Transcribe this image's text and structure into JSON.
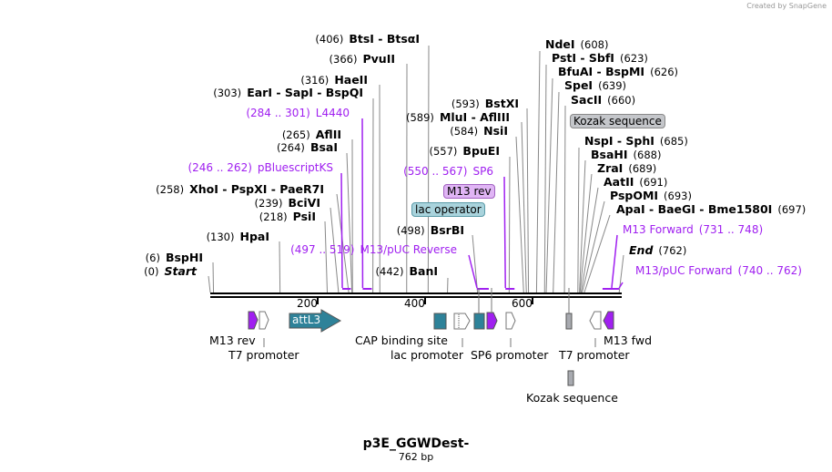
{
  "credit": "Created by SnapGene",
  "title": "p3E_GGWDest-",
  "length": "762 bp",
  "colors": {
    "primer": "#a020f0",
    "teal": "#2e8299",
    "kozak": "#a8aab0",
    "lacop": "#a9d3dc",
    "m13rev_box": "#e0b5f5"
  },
  "sites": [
    {
      "num": "(406)",
      "name": "BtsI  -  BtsαI",
      "bp": 406
    },
    {
      "num": "(366)",
      "name": "PvuII",
      "bp": 366
    },
    {
      "num": "(316)",
      "name": "HaeII",
      "bp": 316
    },
    {
      "num": "(303)",
      "name": "EarI  -  SapI  -  BspQI",
      "bp": 303
    },
    {
      "num": "(265)",
      "name": "AflII",
      "bp": 265
    },
    {
      "num": "(264)",
      "name": "BsaI",
      "bp": 264
    },
    {
      "num": "(258)",
      "name": "XhoI  -  PspXI  -  PaeR7I",
      "bp": 258
    },
    {
      "num": "(239)",
      "name": "BciVI",
      "bp": 239
    },
    {
      "num": "(218)",
      "name": "PsiI",
      "bp": 218
    },
    {
      "num": "(130)",
      "name": "HpaI",
      "bp": 130
    },
    {
      "num": "(6)",
      "name": "BspHI",
      "bp": 6
    },
    {
      "num": "(0)",
      "name": "Start",
      "bp": 0
    },
    {
      "num": "(442)",
      "name": "BanI",
      "bp": 442
    },
    {
      "num": "(498)",
      "name": "BsrBI",
      "bp": 498
    },
    {
      "num": "(557)",
      "name": "BpuEI",
      "bp": 557
    },
    {
      "num": "(584)",
      "name": "NsiI",
      "bp": 584
    },
    {
      "num": "(589)",
      "name": "MluI  -  AflIII",
      "bp": 589
    },
    {
      "num": "(593)",
      "name": "BstXI",
      "bp": 593
    },
    {
      "num": "(608)",
      "name": "NdeI",
      "bp": 608
    },
    {
      "num": "(623)",
      "name": "PstI  -  SbfI",
      "bp": 623
    },
    {
      "num": "(626)",
      "name": "BfuAI  -  BspMI",
      "bp": 626
    },
    {
      "num": "(639)",
      "name": "SpeI",
      "bp": 639
    },
    {
      "num": "(660)",
      "name": "SacII",
      "bp": 660
    },
    {
      "num": "(685)",
      "name": "NspI  -  SphI",
      "bp": 685
    },
    {
      "num": "(688)",
      "name": "BsaHI",
      "bp": 688
    },
    {
      "num": "(689)",
      "name": "ZraI",
      "bp": 689
    },
    {
      "num": "(691)",
      "name": "AatII",
      "bp": 691
    },
    {
      "num": "(693)",
      "name": "PspOMI",
      "bp": 693
    },
    {
      "num": "(697)",
      "name": "ApaI  -  BaeGI  -  Bme1580I",
      "bp": 697
    },
    {
      "num": "(762)",
      "name": "End",
      "bp": 762
    }
  ],
  "primers": [
    {
      "range": "(284 .. 301)",
      "name": "L4440",
      "start": 284,
      "end": 301
    },
    {
      "range": "(246 .. 262)",
      "name": "pBluescriptKS",
      "start": 246,
      "end": 262
    },
    {
      "range": "(497 .. 519)",
      "name": "M13/pUC Reverse",
      "start": 497,
      "end": 519
    },
    {
      "range": "(550 .. 567)",
      "name": "SP6",
      "start": 550,
      "end": 567
    },
    {
      "range": "(731 .. 748)",
      "name": "M13 Forward",
      "start": 731,
      "end": 748
    },
    {
      "range": "(740 .. 762)",
      "name": "M13/pUC Forward",
      "start": 740,
      "end": 762
    }
  ],
  "boxes": {
    "lac_operator": "lac operator",
    "m13_rev": "M13 rev",
    "kozak": "Kozak sequence"
  },
  "ticks": [
    "200",
    "400",
    "600"
  ],
  "features": {
    "attl3": "attL3",
    "m13rev": "M13 rev",
    "t7_left": "T7 promoter",
    "cap": "CAP binding site",
    "lac": "lac promoter",
    "sp6": "SP6 promoter",
    "t7_right": "T7 promoter",
    "m13fwd": "M13 fwd",
    "kozak": "Kozak sequence"
  }
}
